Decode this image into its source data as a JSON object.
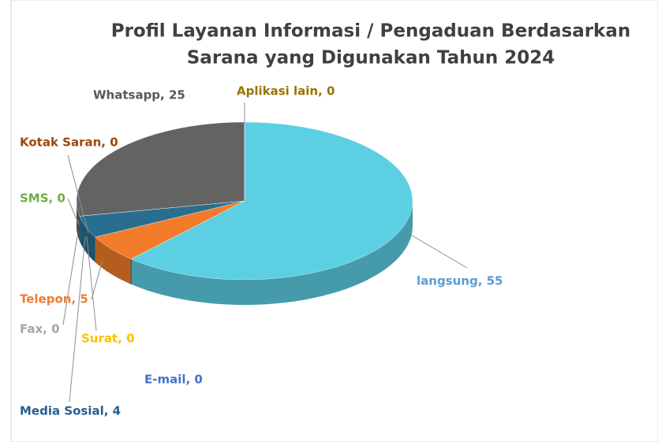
{
  "chart_data": {
    "type": "pie",
    "title_lines": [
      "Profil Layanan Informasi / Pengaduan Berdasarkan",
      "Sarana yang Digunakan Tahun 2024"
    ],
    "categories": [
      "langsung",
      "E-mail",
      "Surat",
      "Telepon",
      "Fax",
      "Media Sosial",
      "SMS",
      "Kotak Saran",
      "Whatsapp",
      "Aplikasi lain"
    ],
    "values": [
      55,
      0,
      0,
      5,
      0,
      4,
      0,
      0,
      25,
      0
    ],
    "value_labels": [
      "langsung, 55",
      "E-mail, 0",
      "Surat, 0",
      "Telepon, 5",
      "Fax, 0",
      "Media Sosial, 4",
      "SMS, 0",
      "Kotak Saran, 0",
      "Whatsapp, 25",
      "Aplikasi lain, 0"
    ],
    "colors": [
      "#5ccfe3",
      "#4472c4",
      "#ffc000",
      "#f27c2a",
      "#a5a5a5",
      "#2a6e8f",
      "#70ad47",
      "#9e480e",
      "#636363",
      "#997300"
    ],
    "label_colors": [
      "#5b9bd5",
      "#4472c4",
      "#ffc000",
      "#ed7d31",
      "#a5a5a5",
      "#255e91",
      "#70ad47",
      "#9e480e",
      "#595959",
      "#997300"
    ]
  }
}
